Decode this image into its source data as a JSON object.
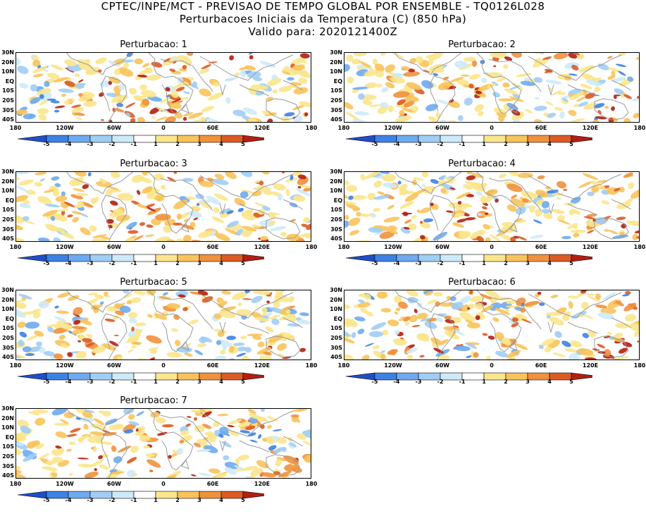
{
  "header": {
    "line1": "CPTEC/INPE/MCT - PREVISAO DE TEMPO GLOBAL POR ENSEMBLE - TQ0126L028",
    "line2": "Perturbacoes Iniciais da Temperatura (C) (850 hPa)",
    "line3": "Valido para: 2020121400Z"
  },
  "panels": [
    {
      "title": "Perturbacao: 1"
    },
    {
      "title": "Perturbacao: 2"
    },
    {
      "title": "Perturbacao: 3"
    },
    {
      "title": "Perturbacao: 4"
    },
    {
      "title": "Perturbacao: 5"
    },
    {
      "title": "Perturbacao: 6"
    },
    {
      "title": "Perturbacao: 7"
    }
  ],
  "axes": {
    "y_ticks": [
      "30N",
      "20N",
      "10N",
      "EQ",
      "10S",
      "20S",
      "30S",
      "40S"
    ],
    "x_ticks": [
      "180",
      "120W",
      "60W",
      "0",
      "60E",
      "120E",
      "180"
    ]
  },
  "colorbar": {
    "labels": [
      "-5",
      "-4",
      "-3",
      "-2",
      "-1",
      "1",
      "2",
      "3",
      "4",
      "5"
    ],
    "colors": [
      "#1e4fc8",
      "#3c82e6",
      "#6eaaf0",
      "#a0cdf5",
      "#cdeafa",
      "#ffffff",
      "#fbe68c",
      "#f8c35a",
      "#f0913c",
      "#dc5a23",
      "#b41e12"
    ]
  },
  "map_style": {
    "coastline_color": "#9b9b9b",
    "background": "#ffffff"
  }
}
